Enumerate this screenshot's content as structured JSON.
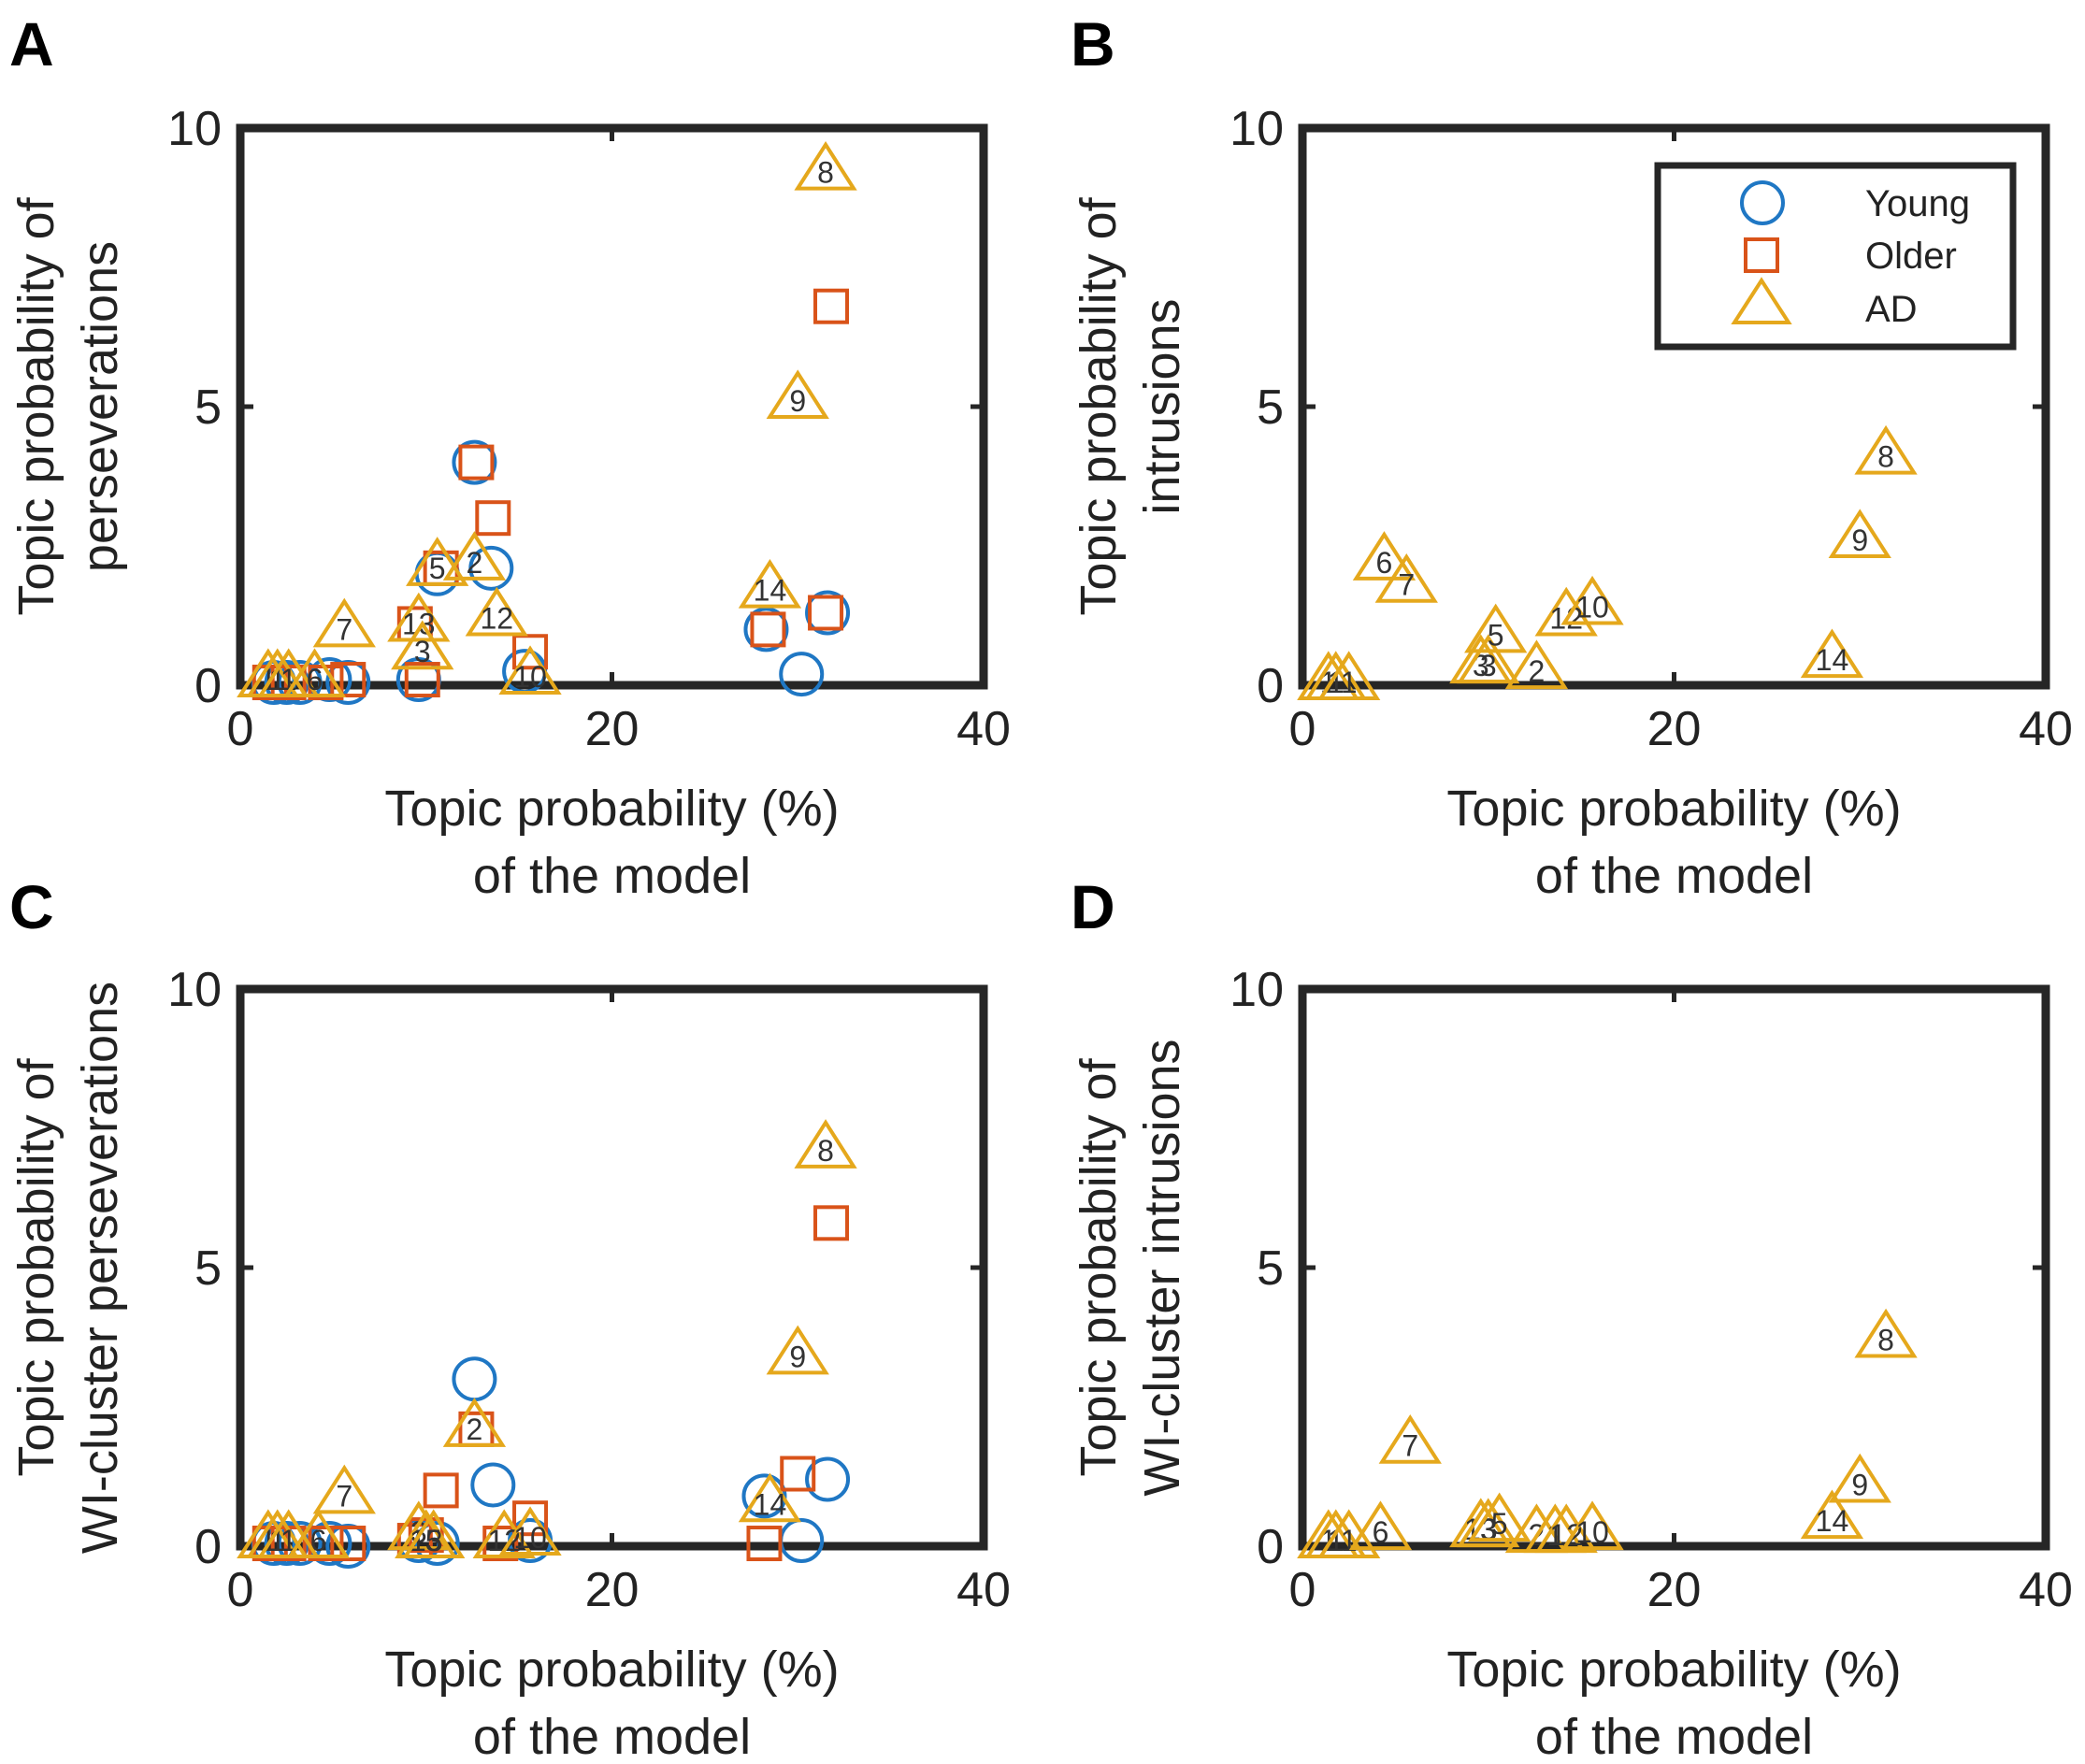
{
  "colors": {
    "young": "#1f77c4",
    "older": "#d95319",
    "ad": "#e5a81c",
    "axes": "#262626",
    "text": "#222222"
  },
  "legend": {
    "entries": [
      {
        "label": "Young",
        "marker": "circle",
        "color": "#1f77c4"
      },
      {
        "label": "Older",
        "marker": "square",
        "color": "#d95319"
      },
      {
        "label": "AD",
        "marker": "triangle",
        "color": "#e5a81c"
      }
    ]
  },
  "chart_data": [
    {
      "type": "scatter",
      "panel": "A",
      "xlabel": [
        "Topic probability (%)",
        "of the model"
      ],
      "ylabel": [
        "Topic probability of",
        "perseverations"
      ],
      "xlim": [
        0,
        40
      ],
      "ylim": [
        0,
        10
      ],
      "xticks": [
        0,
        20,
        40
      ],
      "yticks": [
        0,
        5,
        10
      ],
      "series": [
        {
          "name": "Young",
          "marker": "circle",
          "points": [
            {
              "x": 1.8,
              "y": 0.05
            },
            {
              "x": 2.5,
              "y": 0.05
            },
            {
              "x": 3.2,
              "y": 0.05
            },
            {
              "x": 4.8,
              "y": 0.1
            },
            {
              "x": 5.8,
              "y": 0.05
            },
            {
              "x": 9.6,
              "y": 0.1
            },
            {
              "x": 10.6,
              "y": 2.0
            },
            {
              "x": 12.6,
              "y": 4.0
            },
            {
              "x": 13.5,
              "y": 2.1
            },
            {
              "x": 15.3,
              "y": 0.25
            },
            {
              "x": 28.3,
              "y": 1.0
            },
            {
              "x": 30.2,
              "y": 0.2
            },
            {
              "x": 31.6,
              "y": 1.3
            }
          ]
        },
        {
          "name": "Older",
          "marker": "square",
          "points": [
            {
              "x": 1.6,
              "y": 0.05
            },
            {
              "x": 2.6,
              "y": 0.05
            },
            {
              "x": 4.6,
              "y": 0.05
            },
            {
              "x": 5.8,
              "y": 0.1
            },
            {
              "x": 9.4,
              "y": 1.1
            },
            {
              "x": 9.8,
              "y": 0.1
            },
            {
              "x": 10.8,
              "y": 2.1
            },
            {
              "x": 12.7,
              "y": 4.0
            },
            {
              "x": 13.6,
              "y": 3.0
            },
            {
              "x": 15.6,
              "y": 0.6
            },
            {
              "x": 28.4,
              "y": 1.0
            },
            {
              "x": 31.5,
              "y": 1.3
            },
            {
              "x": 31.8,
              "y": 6.8
            }
          ]
        },
        {
          "name": "AD",
          "marker": "triangle",
          "points": [
            {
              "x": 1.5,
              "y": 0.1,
              "label": "1"
            },
            {
              "x": 2.0,
              "y": 0.1,
              "label": "1"
            },
            {
              "x": 2.6,
              "y": 0.1,
              "label": "1"
            },
            {
              "x": 4.0,
              "y": 0.1,
              "label": "6"
            },
            {
              "x": 5.6,
              "y": 1.0,
              "label": "7"
            },
            {
              "x": 9.6,
              "y": 1.1,
              "label": "13"
            },
            {
              "x": 9.8,
              "y": 0.6,
              "label": "3"
            },
            {
              "x": 10.6,
              "y": 2.1,
              "label": "5"
            },
            {
              "x": 12.6,
              "y": 2.2,
              "label": "2"
            },
            {
              "x": 13.8,
              "y": 1.2,
              "label": "12"
            },
            {
              "x": 15.6,
              "y": 0.15,
              "label": "10"
            },
            {
              "x": 28.5,
              "y": 1.7,
              "label": "14"
            },
            {
              "x": 30.0,
              "y": 5.1,
              "label": "9"
            },
            {
              "x": 31.5,
              "y": 9.2,
              "label": "8"
            }
          ]
        }
      ]
    },
    {
      "type": "scatter",
      "panel": "B",
      "xlabel": [
        "Topic probability (%)",
        "of the model"
      ],
      "ylabel": [
        "Topic probability of",
        "intrusions"
      ],
      "xlim": [
        0,
        40
      ],
      "ylim": [
        0,
        10
      ],
      "xticks": [
        0,
        20,
        40
      ],
      "yticks": [
        0,
        5,
        10
      ],
      "legend": true,
      "series": [
        {
          "name": "Young",
          "marker": "circle",
          "points": []
        },
        {
          "name": "Older",
          "marker": "square",
          "points": []
        },
        {
          "name": "AD",
          "marker": "triangle",
          "points": [
            {
              "x": 1.4,
              "y": 0.05,
              "label": "1"
            },
            {
              "x": 1.8,
              "y": 0.05,
              "label": "1"
            },
            {
              "x": 2.5,
              "y": 0.05,
              "label": "1"
            },
            {
              "x": 4.4,
              "y": 2.2,
              "label": "6"
            },
            {
              "x": 5.6,
              "y": 1.8,
              "label": "7"
            },
            {
              "x": 9.6,
              "y": 0.35,
              "label": "3"
            },
            {
              "x": 10.0,
              "y": 0.35,
              "label": "3"
            },
            {
              "x": 10.4,
              "y": 0.9,
              "label": "5"
            },
            {
              "x": 12.6,
              "y": 0.25,
              "label": "2"
            },
            {
              "x": 14.2,
              "y": 1.2,
              "label": "12"
            },
            {
              "x": 15.6,
              "y": 1.4,
              "label": "10"
            },
            {
              "x": 28.5,
              "y": 0.45,
              "label": "14"
            },
            {
              "x": 30.0,
              "y": 2.6,
              "label": "9"
            },
            {
              "x": 31.4,
              "y": 4.1,
              "label": "8"
            }
          ]
        }
      ]
    },
    {
      "type": "scatter",
      "panel": "C",
      "xlabel": [
        "Topic probability (%)",
        "of the model"
      ],
      "ylabel": [
        "Topic probability of",
        "WI-cluster perseverations"
      ],
      "xlim": [
        0,
        40
      ],
      "ylim": [
        0,
        10
      ],
      "xticks": [
        0,
        20,
        40
      ],
      "yticks": [
        0,
        5,
        10
      ],
      "series": [
        {
          "name": "Young",
          "marker": "circle",
          "points": [
            {
              "x": 1.8,
              "y": 0.05
            },
            {
              "x": 2.5,
              "y": 0.05
            },
            {
              "x": 3.2,
              "y": 0.05
            },
            {
              "x": 4.8,
              "y": 0.05
            },
            {
              "x": 5.8,
              "y": 0.0
            },
            {
              "x": 9.6,
              "y": 0.1
            },
            {
              "x": 10.6,
              "y": 0.05
            },
            {
              "x": 12.6,
              "y": 3.0
            },
            {
              "x": 13.6,
              "y": 1.1
            },
            {
              "x": 15.6,
              "y": 0.1
            },
            {
              "x": 28.2,
              "y": 0.9
            },
            {
              "x": 30.2,
              "y": 0.1
            },
            {
              "x": 31.6,
              "y": 1.2
            }
          ]
        },
        {
          "name": "Older",
          "marker": "square",
          "points": [
            {
              "x": 1.6,
              "y": 0.05
            },
            {
              "x": 2.6,
              "y": 0.05
            },
            {
              "x": 4.6,
              "y": 0.05
            },
            {
              "x": 5.8,
              "y": 0.05
            },
            {
              "x": 9.4,
              "y": 0.1
            },
            {
              "x": 10.0,
              "y": 0.2
            },
            {
              "x": 10.8,
              "y": 1.0
            },
            {
              "x": 12.7,
              "y": 2.1
            },
            {
              "x": 14.0,
              "y": 0.05
            },
            {
              "x": 15.6,
              "y": 0.5
            },
            {
              "x": 28.2,
              "y": 0.05
            },
            {
              "x": 30.0,
              "y": 1.3
            },
            {
              "x": 31.8,
              "y": 5.8
            }
          ]
        },
        {
          "name": "AD",
          "marker": "triangle",
          "points": [
            {
              "x": 1.5,
              "y": 0.1,
              "label": "1"
            },
            {
              "x": 2.0,
              "y": 0.1,
              "label": "1"
            },
            {
              "x": 2.6,
              "y": 0.1,
              "label": "1"
            },
            {
              "x": 4.2,
              "y": 0.1,
              "label": "6"
            },
            {
              "x": 5.6,
              "y": 0.9,
              "label": "7"
            },
            {
              "x": 9.6,
              "y": 0.25,
              "label": "3"
            },
            {
              "x": 10.0,
              "y": 0.1,
              "label": "13"
            },
            {
              "x": 10.4,
              "y": 0.1,
              "label": "5"
            },
            {
              "x": 12.6,
              "y": 2.1,
              "label": "2"
            },
            {
              "x": 14.2,
              "y": 0.1,
              "label": "12"
            },
            {
              "x": 15.6,
              "y": 0.15,
              "label": "10"
            },
            {
              "x": 28.5,
              "y": 0.75,
              "label": "14"
            },
            {
              "x": 30.0,
              "y": 3.4,
              "label": "9"
            },
            {
              "x": 31.5,
              "y": 7.1,
              "label": "8"
            }
          ]
        }
      ]
    },
    {
      "type": "scatter",
      "panel": "D",
      "xlabel": [
        "Topic probability (%)",
        "of the model"
      ],
      "ylabel": [
        "Topic probability of",
        "WI-cluster intrusions"
      ],
      "xlim": [
        0,
        40
      ],
      "ylim": [
        0,
        10
      ],
      "xticks": [
        0,
        20,
        40
      ],
      "yticks": [
        0,
        5,
        10
      ],
      "series": [
        {
          "name": "Young",
          "marker": "circle",
          "points": []
        },
        {
          "name": "Older",
          "marker": "square",
          "points": []
        },
        {
          "name": "AD",
          "marker": "triangle",
          "points": [
            {
              "x": 1.4,
              "y": 0.1,
              "label": "1"
            },
            {
              "x": 1.8,
              "y": 0.1,
              "label": "1"
            },
            {
              "x": 2.5,
              "y": 0.1,
              "label": "1"
            },
            {
              "x": 4.2,
              "y": 0.25,
              "label": "6"
            },
            {
              "x": 5.8,
              "y": 1.8,
              "label": "7"
            },
            {
              "x": 9.6,
              "y": 0.3,
              "label": "13"
            },
            {
              "x": 10.0,
              "y": 0.3,
              "label": "3"
            },
            {
              "x": 10.6,
              "y": 0.4,
              "label": "5"
            },
            {
              "x": 12.6,
              "y": 0.2,
              "label": "2"
            },
            {
              "x": 13.6,
              "y": 0.2,
              "label": "1"
            },
            {
              "x": 14.2,
              "y": 0.2,
              "label": "12"
            },
            {
              "x": 15.6,
              "y": 0.25,
              "label": "10"
            },
            {
              "x": 28.5,
              "y": 0.45,
              "label": "14"
            },
            {
              "x": 30.0,
              "y": 1.1,
              "label": "9"
            },
            {
              "x": 31.4,
              "y": 3.7,
              "label": "8"
            }
          ]
        }
      ]
    }
  ]
}
